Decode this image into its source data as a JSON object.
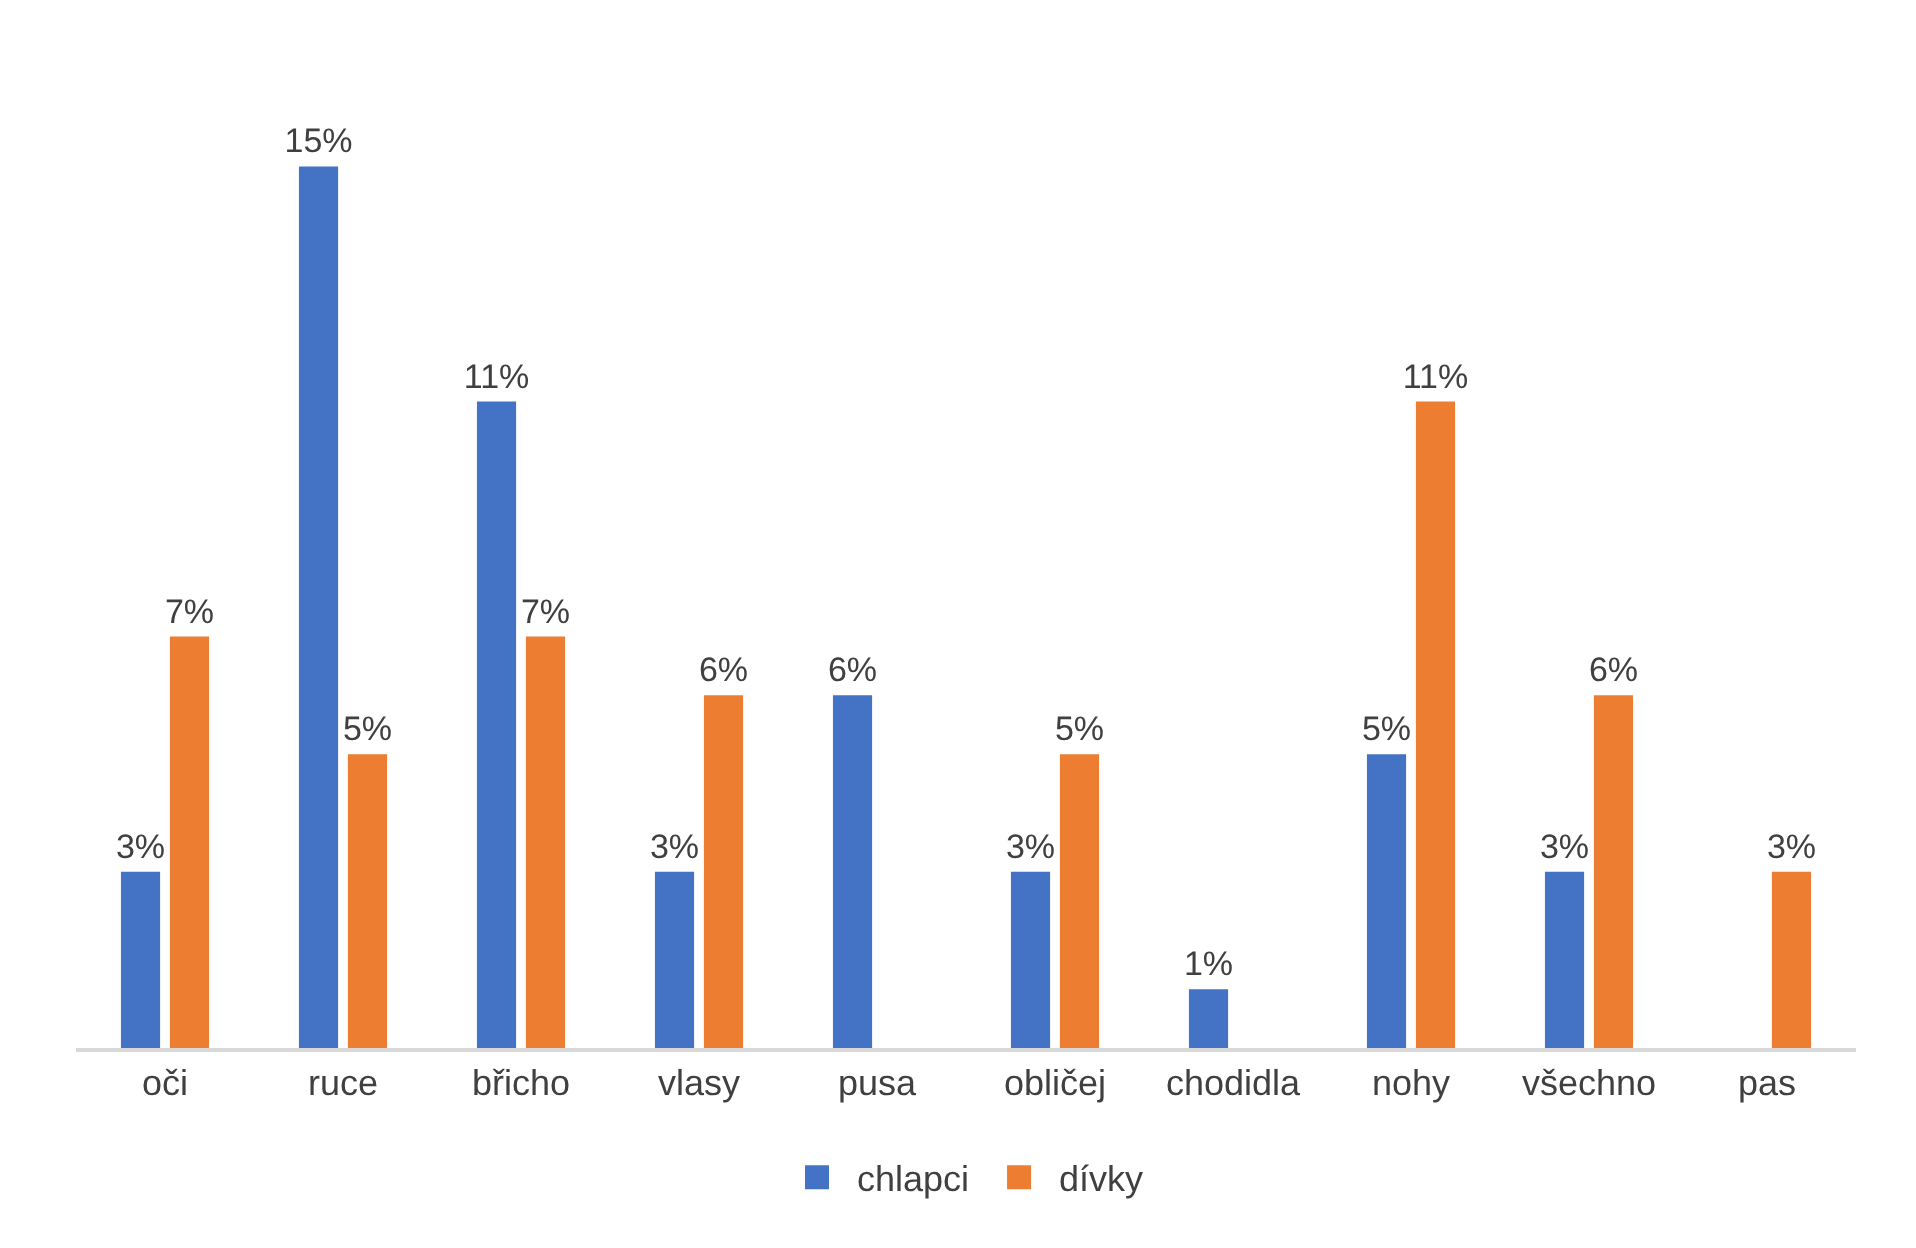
{
  "chart_data": {
    "type": "bar",
    "categories": [
      "oči",
      "ruce",
      "břicho",
      "vlasy",
      "pusa",
      "obličej",
      "chodidla",
      "nohy",
      "všechno",
      "pas"
    ],
    "series": [
      {
        "name": "chlapci",
        "color": "#4472c4",
        "values": [
          3,
          15,
          11,
          3,
          6,
          3,
          1,
          5,
          3,
          null
        ],
        "value_labels": [
          "3%",
          "15%",
          "11%",
          "3%",
          "6%",
          "3%",
          "1%",
          "5%",
          "3%",
          null
        ]
      },
      {
        "name": "dívky",
        "color": "#ed7d31",
        "values": [
          7,
          5,
          7,
          6,
          null,
          5,
          null,
          11,
          6,
          3
        ],
        "value_labels": [
          "7%",
          "5%",
          "7%",
          "6%",
          null,
          "5%",
          null,
          "11%",
          "6%",
          "3%"
        ]
      }
    ],
    "legend": "bottom",
    "grid": false
  }
}
